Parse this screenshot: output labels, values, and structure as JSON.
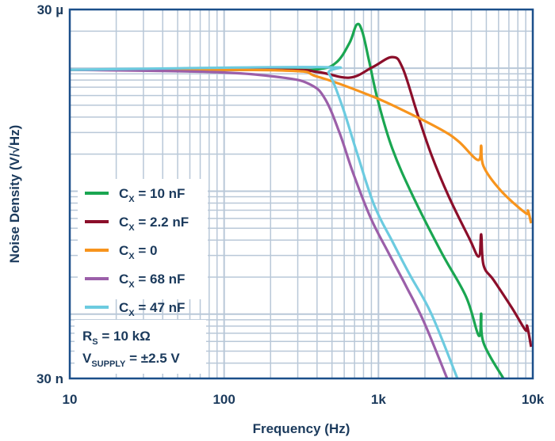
{
  "chart_data": {
    "type": "line",
    "xlabel": "Frequency (Hz)",
    "ylabel": "Noise Density (V/√Hz)",
    "x_scale": "log",
    "y_scale": "log",
    "xlim": [
      10,
      10000
    ],
    "ylim": [
      3e-08,
      3e-05
    ],
    "grid": true,
    "legend_position": "left",
    "x_ticks": [
      {
        "value": 10,
        "label": "10"
      },
      {
        "value": 100,
        "label": "100"
      },
      {
        "value": 1000,
        "label": "1k"
      },
      {
        "value": 10000,
        "label": "10k"
      }
    ],
    "y_ticks": [
      {
        "value": 3e-05,
        "label": "30 µ"
      },
      {
        "value": 3e-08,
        "label": "30 n"
      }
    ],
    "annotations": [
      {
        "main": "R",
        "sub": "S",
        "rest": " = 10 kΩ"
      },
      {
        "main": "V",
        "sub": "SUPPLY",
        "rest": " = ±2.5 V"
      }
    ],
    "series": [
      {
        "name": "C_X = 10 nF",
        "label": {
          "main": "C",
          "sub": "X",
          "rest": " = 10 nF"
        },
        "color": "#1aa651",
        "points": [
          [
            10,
            9.7e-06
          ],
          [
            222,
            9.7e-06
          ],
          [
            405,
            9.8e-06
          ],
          [
            532,
            1.11e-05
          ],
          [
            650,
            1.61e-05
          ],
          [
            723,
            2.26e-05
          ],
          [
            786,
            1.98e-05
          ],
          [
            874,
            1.11e-05
          ],
          [
            995,
            5.37e-06
          ],
          [
            1231,
            2.21e-06
          ],
          [
            1675,
            9.07e-07
          ],
          [
            2564,
            3.16e-07
          ],
          [
            3700,
            1.38e-07
          ],
          [
            4470,
            6.67e-08
          ],
          [
            4631,
            1.01e-07
          ],
          [
            4797,
            5.84e-08
          ],
          [
            6449,
            3e-08
          ]
        ]
      },
      {
        "name": "C_X = 2.2 nF",
        "label": {
          "main": "C",
          "sub": "X",
          "rest": " = 2.2 nF"
        },
        "color": "#8b0e2a",
        "points": [
          [
            10,
            9.7e-06
          ],
          [
            222,
            9.7e-06
          ],
          [
            405,
            9.3e-06
          ],
          [
            650,
            8.38e-06
          ],
          [
            916,
            1.02e-05
          ],
          [
            1231,
            1.23e-05
          ],
          [
            1436,
            1e-05
          ],
          [
            1777,
            4.37e-06
          ],
          [
            2198,
            1.99e-06
          ],
          [
            2852,
            9.07e-07
          ],
          [
            3878,
            4.13e-07
          ],
          [
            4470,
            2.94e-07
          ],
          [
            4631,
            4.45e-07
          ],
          [
            4797,
            2.5e-07
          ],
          [
            5596,
            1.88e-07
          ],
          [
            7340,
            1.12e-07
          ],
          [
            8980,
            7.4e-08
          ],
          [
            9194,
            8e-08
          ],
          [
            9754,
            5.42e-08
          ]
        ]
      },
      {
        "name": "C_X = 0",
        "label": {
          "main": "C",
          "sub": "X",
          "rest": " = 0"
        },
        "color": "#f7941d",
        "points": [
          [
            10,
            9.7e-06
          ],
          [
            222,
            9.6e-06
          ],
          [
            405,
            8.51e-06
          ],
          [
            894,
            5.96e-06
          ],
          [
            1506,
            4.43e-06
          ],
          [
            2564,
            3.15e-06
          ],
          [
            3326,
            2.52e-06
          ],
          [
            4418,
            1.79e-06
          ],
          [
            4631,
            2.34e-06
          ],
          [
            4797,
            1.59e-06
          ],
          [
            6223,
            1.006e-06
          ],
          [
            8980,
            6.64e-07
          ],
          [
            9306,
            6.94e-07
          ],
          [
            9754,
            5.48e-07
          ]
        ]
      },
      {
        "name": "C_X = 68 nF",
        "label": {
          "main": "C",
          "sub": "X",
          "rest": " = 68 nF"
        },
        "color": "#9b5fa9",
        "points": [
          [
            10,
            9.7e-06
          ],
          [
            84,
            9.3e-06
          ],
          [
            241,
            8.38e-06
          ],
          [
            364,
            7.33e-06
          ],
          [
            451,
            5.62e-06
          ],
          [
            558,
            3.01e-06
          ],
          [
            690,
            1.37e-06
          ],
          [
            894,
            5.99e-07
          ],
          [
            1160,
            3.16e-07
          ],
          [
            1506,
            1.7e-07
          ],
          [
            1976,
            8.58e-08
          ],
          [
            2785,
            3e-08
          ]
        ]
      },
      {
        "name": "C_X = 47 nF",
        "label": {
          "main": "C",
          "sub": "X",
          "rest": " = 47 nF"
        },
        "color": "#6ccbe0",
        "points": [
          [
            10,
            9.7e-06
          ],
          [
            405,
            1.02e-05
          ],
          [
            478,
            9.03e-06
          ],
          [
            585,
            4.84e-06
          ],
          [
            723,
            2.08e-06
          ],
          [
            938,
            7.7e-07
          ],
          [
            1231,
            3.9e-07
          ],
          [
            1597,
            2.09e-07
          ],
          [
            2198,
            1.01e-07
          ],
          [
            3248,
            3e-08
          ]
        ]
      }
    ]
  }
}
